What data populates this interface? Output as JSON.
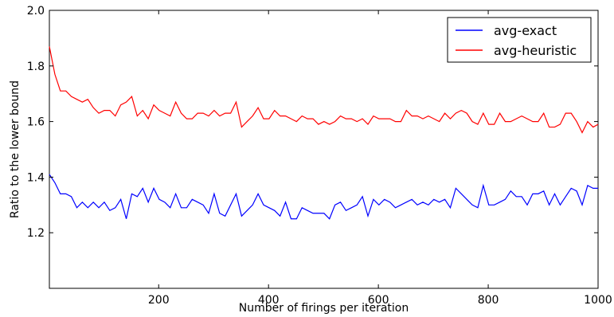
{
  "chart_data": {
    "type": "line",
    "title": "",
    "xlabel": "Number of firings per iteration",
    "ylabel": "Ratio to the lower bound",
    "xlim": [
      1,
      1000
    ],
    "ylim": [
      1.0,
      2.0
    ],
    "xticks": [
      200,
      400,
      600,
      800,
      1000
    ],
    "yticks": [
      1.2,
      1.4,
      1.6,
      1.8,
      2.0
    ],
    "xtick_labels": [
      "200",
      "400",
      "600",
      "800",
      "1000"
    ],
    "ytick_labels": [
      "1.2",
      "1.4",
      "1.6",
      "1.8",
      "2.0"
    ],
    "grid": false,
    "legend_position": "upper right",
    "x": [
      1,
      11,
      21,
      31,
      41,
      51,
      61,
      71,
      81,
      91,
      101,
      111,
      121,
      131,
      141,
      151,
      161,
      171,
      181,
      191,
      201,
      211,
      221,
      231,
      241,
      251,
      261,
      271,
      281,
      291,
      301,
      311,
      321,
      331,
      341,
      351,
      361,
      371,
      381,
      391,
      401,
      411,
      421,
      431,
      441,
      451,
      461,
      471,
      481,
      491,
      501,
      511,
      521,
      531,
      541,
      551,
      561,
      571,
      581,
      591,
      601,
      611,
      621,
      631,
      641,
      651,
      661,
      671,
      681,
      691,
      701,
      711,
      721,
      731,
      741,
      751,
      761,
      771,
      781,
      791,
      801,
      811,
      821,
      831,
      841,
      851,
      861,
      871,
      881,
      891,
      901,
      911,
      921,
      931,
      941,
      951,
      961,
      971,
      981,
      991,
      1000
    ],
    "series": [
      {
        "name": "avg-exact",
        "color": "#0000ff",
        "values": [
          1.41,
          1.38,
          1.34,
          1.34,
          1.33,
          1.29,
          1.31,
          1.29,
          1.31,
          1.29,
          1.31,
          1.28,
          1.29,
          1.32,
          1.25,
          1.34,
          1.33,
          1.36,
          1.31,
          1.36,
          1.32,
          1.31,
          1.29,
          1.34,
          1.29,
          1.29,
          1.32,
          1.31,
          1.3,
          1.27,
          1.34,
          1.27,
          1.26,
          1.3,
          1.34,
          1.26,
          1.28,
          1.3,
          1.34,
          1.3,
          1.29,
          1.28,
          1.26,
          1.31,
          1.25,
          1.25,
          1.29,
          1.28,
          1.27,
          1.27,
          1.27,
          1.25,
          1.3,
          1.31,
          1.28,
          1.29,
          1.3,
          1.33,
          1.26,
          1.32,
          1.3,
          1.32,
          1.31,
          1.29,
          1.3,
          1.31,
          1.32,
          1.3,
          1.31,
          1.3,
          1.32,
          1.31,
          1.32,
          1.29,
          1.36,
          1.34,
          1.32,
          1.3,
          1.29,
          1.37,
          1.3,
          1.3,
          1.31,
          1.32,
          1.35,
          1.33,
          1.33,
          1.3,
          1.34,
          1.34,
          1.35,
          1.3,
          1.34,
          1.3,
          1.33,
          1.36,
          1.35,
          1.3,
          1.37,
          1.36,
          1.36
        ]
      },
      {
        "name": "avg-heuristic",
        "color": "#ff0000",
        "values": [
          1.87,
          1.77,
          1.71,
          1.71,
          1.69,
          1.68,
          1.67,
          1.68,
          1.65,
          1.63,
          1.64,
          1.64,
          1.62,
          1.66,
          1.67,
          1.69,
          1.62,
          1.64,
          1.61,
          1.66,
          1.64,
          1.63,
          1.62,
          1.67,
          1.63,
          1.61,
          1.61,
          1.63,
          1.63,
          1.62,
          1.64,
          1.62,
          1.63,
          1.63,
          1.67,
          1.58,
          1.6,
          1.62,
          1.65,
          1.61,
          1.61,
          1.64,
          1.62,
          1.62,
          1.61,
          1.6,
          1.62,
          1.61,
          1.61,
          1.59,
          1.6,
          1.59,
          1.6,
          1.62,
          1.61,
          1.61,
          1.6,
          1.61,
          1.59,
          1.62,
          1.61,
          1.61,
          1.61,
          1.6,
          1.6,
          1.64,
          1.62,
          1.62,
          1.61,
          1.62,
          1.61,
          1.6,
          1.63,
          1.61,
          1.63,
          1.64,
          1.63,
          1.6,
          1.59,
          1.63,
          1.59,
          1.59,
          1.63,
          1.6,
          1.6,
          1.61,
          1.62,
          1.61,
          1.6,
          1.6,
          1.63,
          1.58,
          1.58,
          1.59,
          1.63,
          1.63,
          1.6,
          1.56,
          1.6,
          1.58,
          1.59
        ]
      }
    ]
  }
}
